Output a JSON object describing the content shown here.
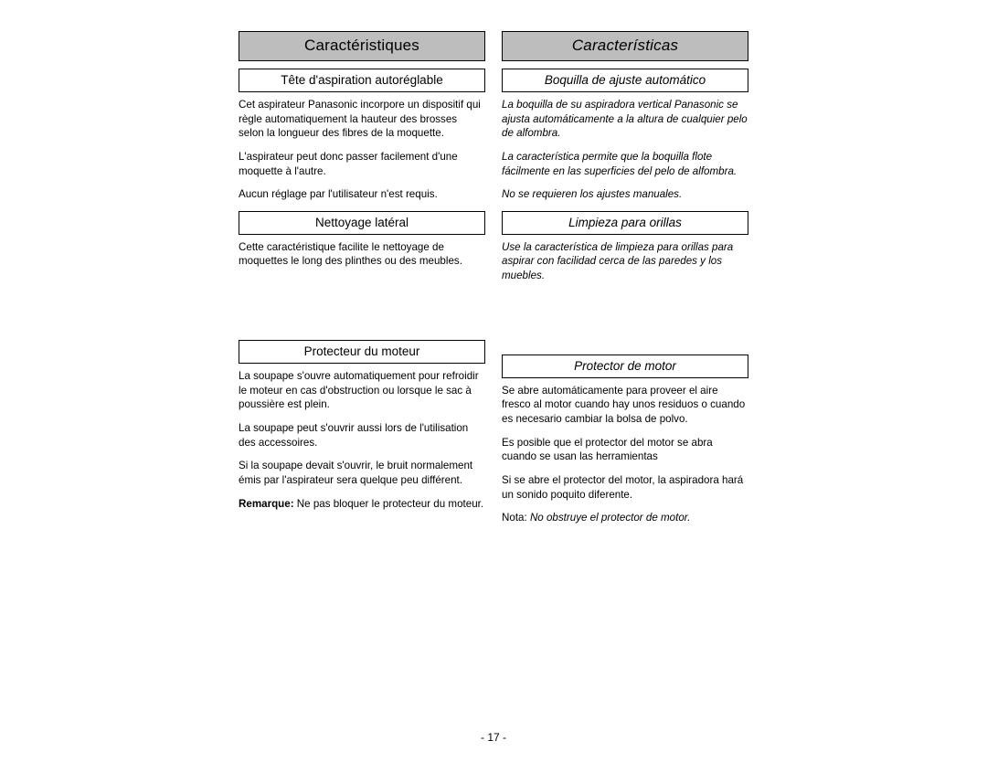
{
  "page_number": "- 17 -",
  "left": {
    "header": "Caractéristiques",
    "sections": [
      {
        "title": "Tête d'aspiration autoréglable",
        "paras": [
          "Cet aspirateur Panasonic incorpore un dispositif qui règle automatiquement la hauteur des brosses selon la longueur des fibres de la moquette.",
          "L'aspirateur peut donc passer facilement d'une moquette à l'autre.",
          "Aucun réglage par l'utilisateur n'est requis."
        ]
      },
      {
        "title": "Nettoyage latéral",
        "paras": [
          "Cette caractéristique facilite le nettoyage de moquettes le long des plinthes ou des meubles."
        ]
      },
      {
        "title": "Protecteur du moteur",
        "paras": [
          "La soupape s'ouvre automatiquement pour refroidir le moteur en cas d'obstruction ou lorsque le sac à poussière est plein.",
          "La soupape peut s'ouvrir aussi lors de l'utilisation des accessoires.",
          "Si la soupape devait s'ouvrir, le bruit normalement émis par l'aspirateur sera quelque peu différent."
        ],
        "note_label": "Remarque:",
        "note_text": " Ne pas bloquer le protecteur du moteur."
      }
    ]
  },
  "right": {
    "header": "Características",
    "header_italic": true,
    "sections": [
      {
        "title": "Boquilla de ajuste automático",
        "title_italic": true,
        "paras_italic": true,
        "paras": [
          "La boquilla de su aspiradora vertical Panasonic se ajusta automáticamente a la altura de cualquier pelo de alfombra.",
          "La característica permite que la boquilla flote fácilmente en las superficies del pelo de alfombra.",
          "No se requieren los ajustes manuales."
        ]
      },
      {
        "title": "Limpieza para orillas",
        "title_italic": true,
        "paras_italic": true,
        "paras": [
          "Use la característica de limpieza para orillas para aspirar con facilidad cerca de las paredes y los muebles."
        ]
      },
      {
        "title": "Protector de motor",
        "title_italic": true,
        "paras": [
          "Se abre automáticamente para proveer el aire fresco al motor cuando hay unos residuos o cuando es necesario cambiar la bolsa de polvo.",
          "Es posible que el protector del motor se abra cuando se usan las herramientas",
          "Si se abre el protector del motor, la aspiradora hará un sonido poquito diferente."
        ],
        "note_prefix": "Nota:  ",
        "note_italic_text": "No obstruye el protector de motor."
      }
    ]
  }
}
